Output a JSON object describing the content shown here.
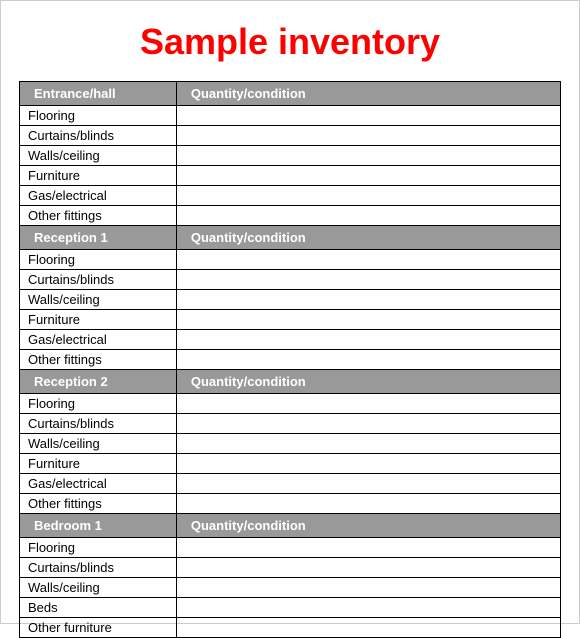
{
  "title": "Sample inventory",
  "title_color": "#ff0000",
  "header_bg": "#999999",
  "header_fg": "#ffffff",
  "border_color": "#000000",
  "qty_header": "Quantity/condition",
  "sections": [
    {
      "name": "Entrance/hall",
      "items": [
        {
          "label": "Flooring",
          "qty": ""
        },
        {
          "label": "Curtains/blinds",
          "qty": ""
        },
        {
          "label": "Walls/ceiling",
          "qty": ""
        },
        {
          "label": "Furniture",
          "qty": ""
        },
        {
          "label": "Gas/electrical",
          "qty": ""
        },
        {
          "label": "Other fittings",
          "qty": ""
        }
      ]
    },
    {
      "name": "Reception 1",
      "items": [
        {
          "label": "Flooring",
          "qty": ""
        },
        {
          "label": "Curtains/blinds",
          "qty": ""
        },
        {
          "label": "Walls/ceiling",
          "qty": ""
        },
        {
          "label": "Furniture",
          "qty": ""
        },
        {
          "label": "Gas/electrical",
          "qty": ""
        },
        {
          "label": "Other fittings",
          "qty": ""
        }
      ]
    },
    {
      "name": "Reception 2",
      "items": [
        {
          "label": "Flooring",
          "qty": ""
        },
        {
          "label": "Curtains/blinds",
          "qty": ""
        },
        {
          "label": "Walls/ceiling",
          "qty": ""
        },
        {
          "label": "Furniture",
          "qty": ""
        },
        {
          "label": "Gas/electrical",
          "qty": ""
        },
        {
          "label": "Other fittings",
          "qty": ""
        }
      ]
    },
    {
      "name": "Bedroom 1",
      "items": [
        {
          "label": "Flooring",
          "qty": ""
        },
        {
          "label": "Curtains/blinds",
          "qty": ""
        },
        {
          "label": "Walls/ceiling",
          "qty": ""
        },
        {
          "label": "Beds",
          "qty": ""
        },
        {
          "label": "Other furniture",
          "qty": ""
        }
      ]
    }
  ]
}
